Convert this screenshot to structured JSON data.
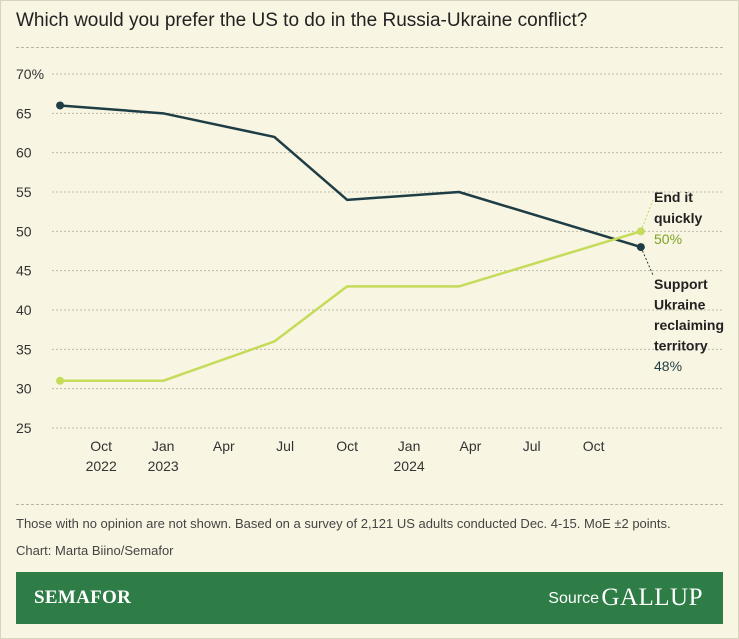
{
  "title": "Which would you prefer the US to do in the Russia-Ukraine conflict?",
  "footnote": "Those with no opinion are not shown. Based on a survey of 2,121 US adults conducted Dec. 4-15. MoE ±2 points.",
  "credit": "Chart: Marta Biino/Semafor",
  "footer": {
    "brand": "SEMAFOR",
    "source_label": "Source",
    "source_name": "GALLUP"
  },
  "colors": {
    "background": "#f9f5e3",
    "support_series": "#1f3d45",
    "end_series": "#c5db5a",
    "end_value_text": "#7da21f",
    "footer": "#2f7d46"
  },
  "chart_data": {
    "type": "line",
    "title": "Which would you prefer the US to do in the Russia-Ukraine conflict?",
    "xlabel": "",
    "ylabel": "",
    "y_tick_labels": [
      "70%",
      "65",
      "60",
      "55",
      "50",
      "45",
      "40",
      "35",
      "30",
      "25"
    ],
    "y_ticks": [
      70,
      65,
      60,
      55,
      50,
      45,
      40,
      35,
      30,
      25
    ],
    "ylim": [
      25,
      70
    ],
    "x_tick_labels": [
      {
        "label": "Oct",
        "year": "2022",
        "date": "2022-10-01"
      },
      {
        "label": "Jan",
        "year": "2023",
        "date": "2023-01-01"
      },
      {
        "label": "Apr",
        "year": "",
        "date": "2023-04-01"
      },
      {
        "label": "Jul",
        "year": "",
        "date": "2023-07-01"
      },
      {
        "label": "Oct",
        "year": "",
        "date": "2023-10-01"
      },
      {
        "label": "Jan",
        "year": "2024",
        "date": "2024-01-01"
      },
      {
        "label": "Apr",
        "year": "",
        "date": "2024-04-01"
      },
      {
        "label": "Jul",
        "year": "",
        "date": "2024-07-01"
      },
      {
        "label": "Oct",
        "year": "",
        "date": "2024-10-01"
      }
    ],
    "xlim": [
      "2022-07-20",
      "2024-12-31"
    ],
    "grid": true,
    "series": [
      {
        "name": "Support Ukraine reclaiming territory",
        "name_lines": [
          "Support",
          "Ukraine",
          "reclaiming",
          "territory"
        ],
        "end_label": "48%",
        "color": "#1f3d45",
        "points": [
          {
            "x": "2022-08-01",
            "y": 66
          },
          {
            "x": "2023-01-01",
            "y": 65
          },
          {
            "x": "2023-06-15",
            "y": 62
          },
          {
            "x": "2023-10-01",
            "y": 54
          },
          {
            "x": "2024-03-15",
            "y": 55
          },
          {
            "x": "2024-12-10",
            "y": 48
          }
        ]
      },
      {
        "name": "End it quickly",
        "name_lines": [
          "End it",
          "quickly"
        ],
        "end_label": "50%",
        "color": "#c5db5a",
        "points": [
          {
            "x": "2022-08-01",
            "y": 31
          },
          {
            "x": "2023-01-01",
            "y": 31
          },
          {
            "x": "2023-06-15",
            "y": 36
          },
          {
            "x": "2023-10-01",
            "y": 43
          },
          {
            "x": "2024-03-15",
            "y": 43
          },
          {
            "x": "2024-12-10",
            "y": 50
          }
        ]
      }
    ]
  }
}
